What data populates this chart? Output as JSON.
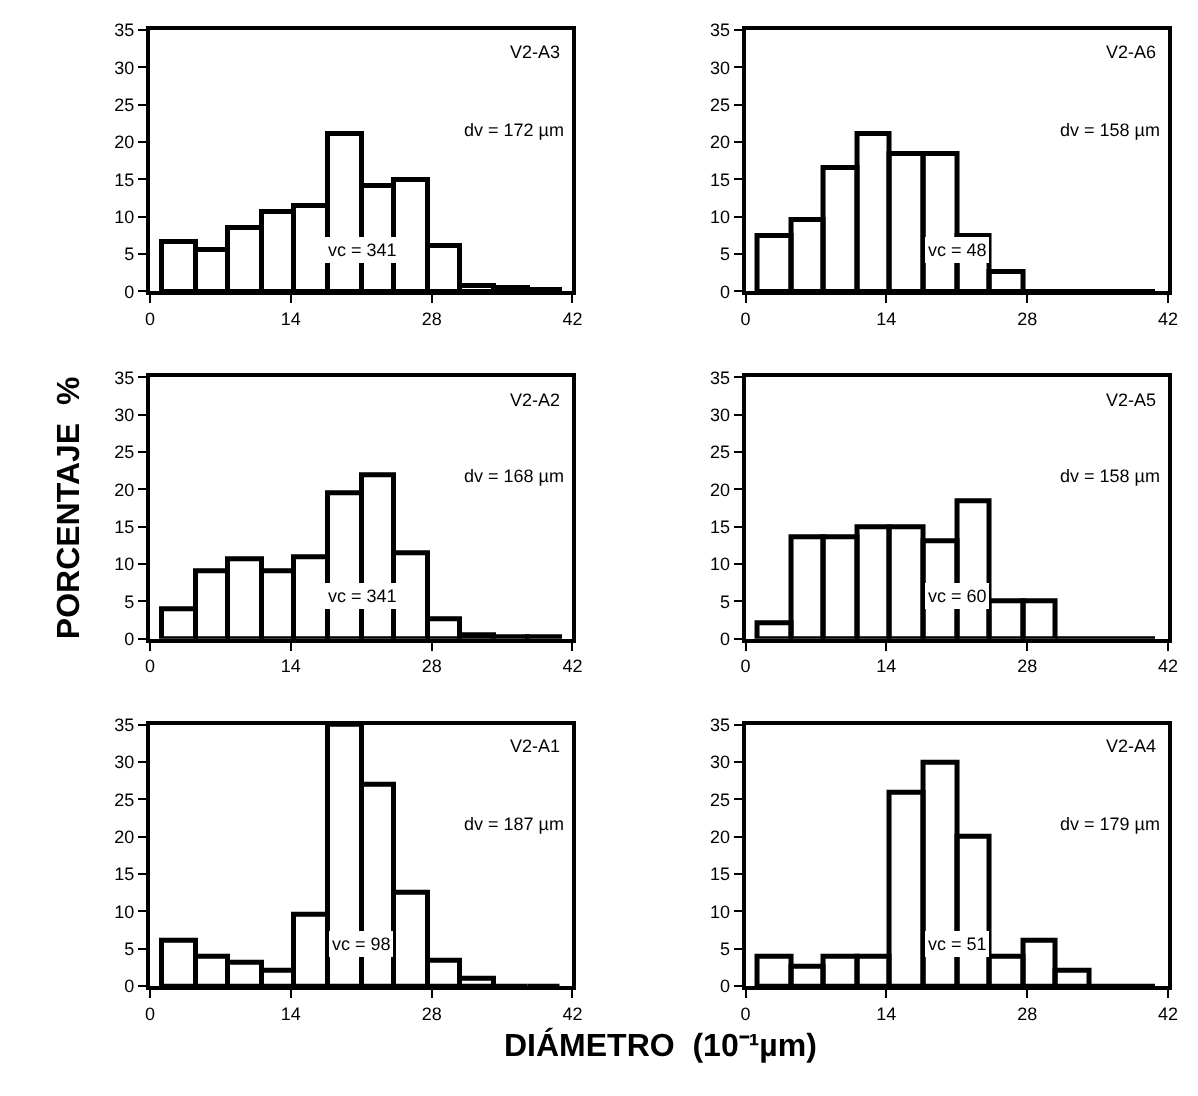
{
  "chart_data": [
    {
      "type": "histogram",
      "bins": [
        1.2,
        4.5,
        7.8,
        11.1,
        14.4,
        17.7,
        21,
        24.3,
        27.6,
        30.9,
        34.2,
        37.5,
        40.8
      ],
      "values": [
        6.5,
        5.5,
        8.5,
        10.5,
        11.5,
        21,
        14,
        15,
        6,
        0.7,
        0.5,
        0.3
      ],
      "color": "#000000",
      "xlim": [
        0,
        42
      ],
      "xticks": [
        0,
        14,
        28,
        42
      ],
      "ylim": [
        0,
        35
      ],
      "yticks": [
        0,
        5,
        10,
        15,
        20,
        25,
        30,
        35
      ],
      "annotations": [
        "V2-A3",
        "dv = 172 µm",
        "vc = 341"
      ]
    },
    {
      "type": "histogram",
      "bins": [
        1.2,
        4.5,
        7.8,
        11.1,
        14.4,
        17.7,
        21,
        24.3,
        27.6,
        30.9,
        34.2,
        37.5,
        40.8
      ],
      "values": [
        7.5,
        9.5,
        16.5,
        21,
        18.5,
        18.5,
        7.5,
        2.5,
        0,
        0,
        0,
        0
      ],
      "color": "#000000",
      "xlim": [
        0,
        42
      ],
      "xticks": [
        0,
        14,
        28,
        42
      ],
      "ylim": [
        0,
        35
      ],
      "yticks": [
        0,
        5,
        10,
        15,
        20,
        25,
        30,
        35
      ],
      "annotations": [
        "V2-A6",
        "dv = 158 µm",
        "vc = 48"
      ]
    },
    {
      "type": "histogram",
      "bins": [
        1.2,
        4.5,
        7.8,
        11.1,
        14.4,
        17.7,
        21,
        24.3,
        27.6,
        30.9,
        34.2,
        37.5,
        40.8
      ],
      "values": [
        4,
        9,
        10.5,
        9,
        11,
        19.5,
        22,
        11.5,
        2.5,
        0.5,
        0.3,
        0.2
      ],
      "color": "#000000",
      "xlim": [
        0,
        42
      ],
      "xticks": [
        0,
        14,
        28,
        42
      ],
      "ylim": [
        0,
        35
      ],
      "yticks": [
        0,
        5,
        10,
        15,
        20,
        25,
        30,
        35
      ],
      "ylabel": "PORCENTAJE  %",
      "annotations": [
        "V2-A2",
        "dv = 168 µm",
        "vc = 341"
      ]
    },
    {
      "type": "histogram",
      "bins": [
        1.2,
        4.5,
        7.8,
        11.1,
        14.4,
        17.7,
        21,
        24.3,
        27.6,
        30.9,
        34.2,
        37.5,
        40.8
      ],
      "values": [
        2,
        13.5,
        13.5,
        15,
        15,
        13,
        18.5,
        5,
        5,
        0,
        0,
        0
      ],
      "color": "#000000",
      "xlim": [
        0,
        42
      ],
      "xticks": [
        0,
        14,
        28,
        42
      ],
      "ylim": [
        0,
        35
      ],
      "yticks": [
        0,
        5,
        10,
        15,
        20,
        25,
        30,
        35
      ],
      "annotations": [
        "V2-A5",
        "dv = 158 µm",
        "vc = 60"
      ]
    },
    {
      "type": "histogram",
      "bins": [
        1.2,
        4.5,
        7.8,
        11.1,
        14.4,
        17.7,
        21,
        24.3,
        27.6,
        30.9,
        34.2,
        37.5,
        40.8
      ],
      "values": [
        6,
        4,
        3,
        2,
        9.5,
        35,
        27,
        12.5,
        3.5,
        1,
        0,
        0
      ],
      "color": "#000000",
      "xlim": [
        0,
        42
      ],
      "xticks": [
        0,
        14,
        28,
        42
      ],
      "ylim": [
        0,
        35
      ],
      "yticks": [
        0,
        5,
        10,
        15,
        20,
        25,
        30,
        35
      ],
      "xlabel": "DIÁMETRO  (10⁻¹µm)",
      "annotations": [
        "V2-A1",
        "dv = 187 µm",
        "vc = 98"
      ]
    },
    {
      "type": "histogram",
      "bins": [
        1.2,
        4.5,
        7.8,
        11.1,
        14.4,
        17.7,
        21,
        24.3,
        27.6,
        30.9,
        34.2,
        37.5,
        40.8
      ],
      "values": [
        4,
        2.5,
        4,
        4,
        26,
        30,
        20,
        4,
        6,
        2,
        0,
        0
      ],
      "color": "#000000",
      "xlim": [
        0,
        42
      ],
      "xticks": [
        0,
        14,
        28,
        42
      ],
      "ylim": [
        0,
        35
      ],
      "yticks": [
        0,
        5,
        10,
        15,
        20,
        25,
        30,
        35
      ],
      "annotations": [
        "V2-A4",
        "dv = 179 µm",
        "vc = 51"
      ]
    }
  ]
}
